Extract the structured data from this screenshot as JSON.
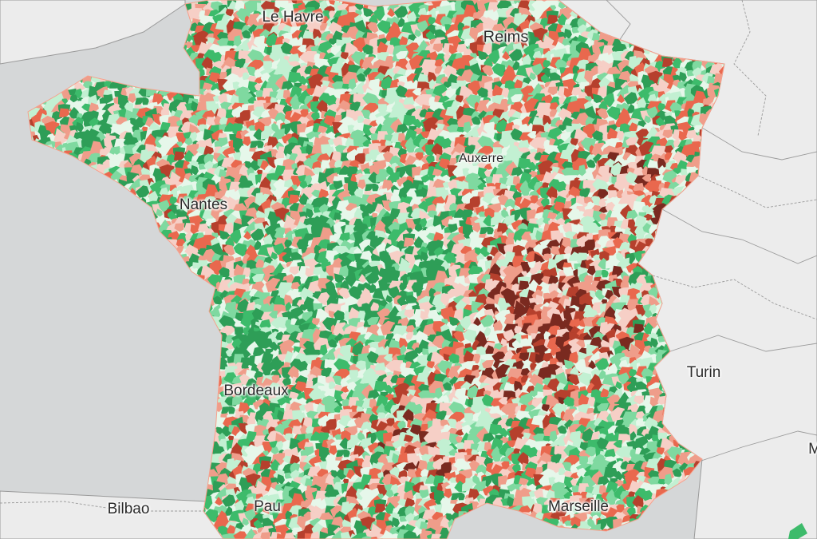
{
  "map": {
    "colors": {
      "sea": "#d5d7d8",
      "land": "#ececec",
      "border": "#9a9a9a",
      "palette": [
        "#2e9e57",
        "#3dbb6b",
        "#7fd9a0",
        "#c2f0d2",
        "#e6f7ea",
        "#f6cfc6",
        "#ef9d8a",
        "#e9684e",
        "#b6402d",
        "#7a2a20"
      ]
    },
    "cities": {
      "le_havre": "Le Havre",
      "reims": "Reims",
      "auxerre": "Auxerre",
      "nantes": "Nantes",
      "bordeaux": "Bordeaux",
      "turin": "Turin",
      "bilbao": "Bilbao",
      "pau": "Pau",
      "marseille": "Marseille",
      "edge_m": "M"
    }
  }
}
